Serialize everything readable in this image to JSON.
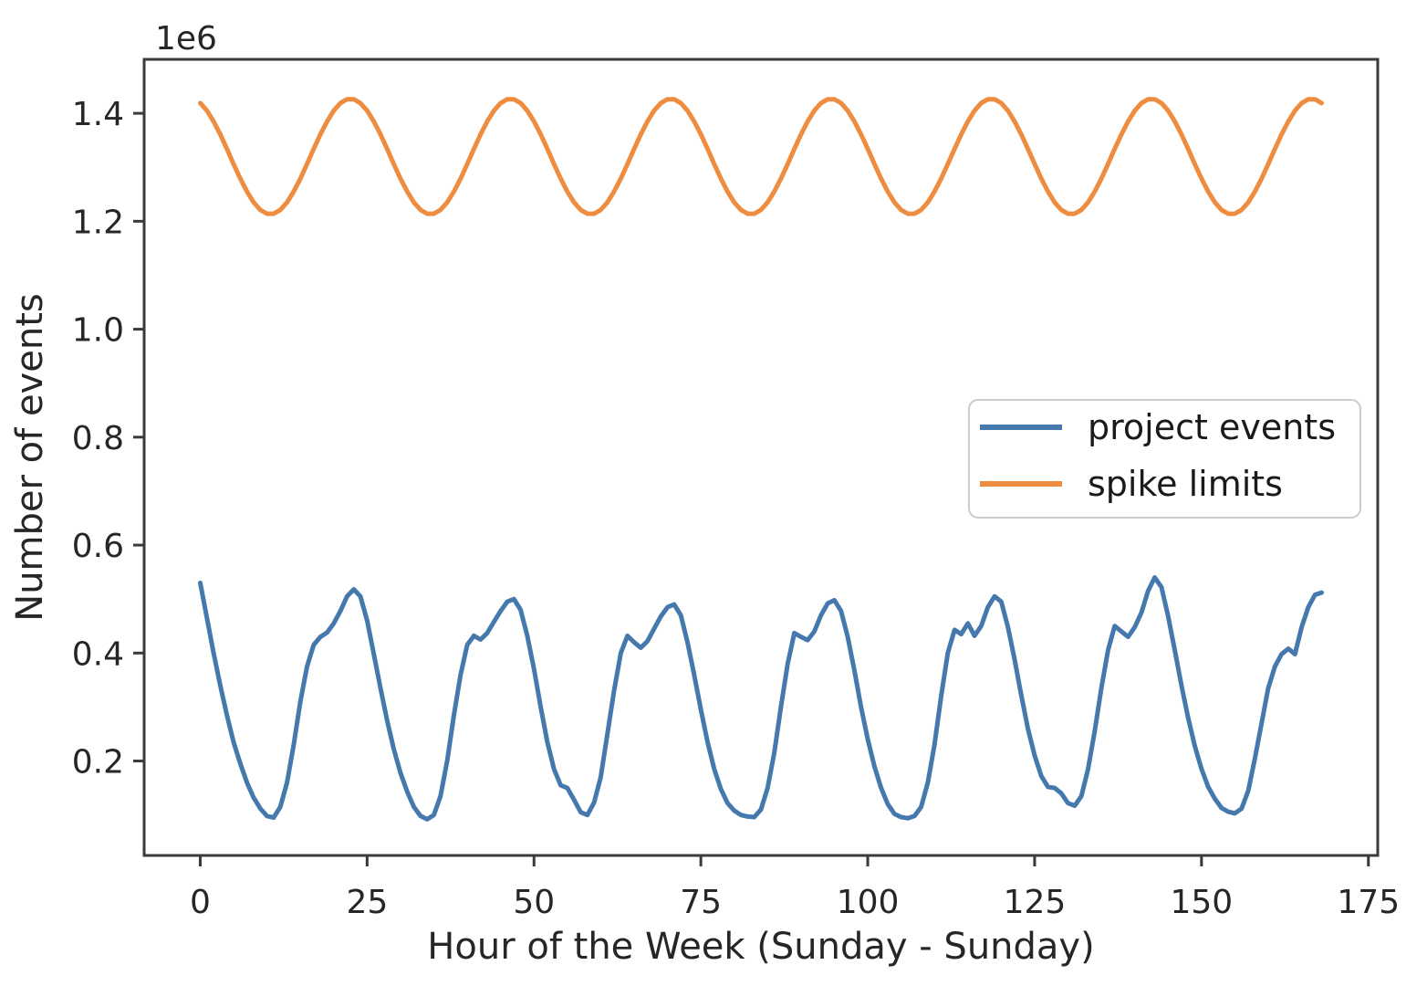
{
  "figure": {
    "background": "#ffffff",
    "spine_color": "#3a3a3a",
    "text_color": "#262626"
  },
  "chart_data": {
    "type": "line",
    "title": "",
    "xlabel": "Hour of the Week (Sunday - Sunday)",
    "ylabel": "Number of events",
    "y_offset_text": "1e6",
    "y_unit_multiplier": 1000000,
    "xlim": [
      -8.4,
      176.4
    ],
    "ylim_millions": [
      0.025,
      1.5
    ],
    "grid": false,
    "legend_position": "center right",
    "x_ticks": [
      0,
      25,
      50,
      75,
      100,
      125,
      150,
      175
    ],
    "x_tick_labels": [
      "0",
      "25",
      "50",
      "75",
      "100",
      "125",
      "150",
      "175"
    ],
    "y_ticks_millions": [
      0.2,
      0.4,
      0.6,
      0.8,
      1.0,
      1.2,
      1.4
    ],
    "y_tick_labels": [
      "0.2",
      "0.4",
      "0.6",
      "0.8",
      "1.0",
      "1.2",
      "1.4"
    ],
    "x": {
      "start": 0,
      "step": 1,
      "count": 169
    },
    "series": [
      {
        "name": "project events",
        "color": "#4579ad",
        "values_millions": [
          0.53,
          0.465,
          0.4,
          0.34,
          0.285,
          0.235,
          0.195,
          0.16,
          0.132,
          0.112,
          0.098,
          0.095,
          0.115,
          0.16,
          0.23,
          0.31,
          0.375,
          0.415,
          0.43,
          0.438,
          0.455,
          0.478,
          0.505,
          0.518,
          0.505,
          0.46,
          0.398,
          0.335,
          0.275,
          0.222,
          0.178,
          0.143,
          0.115,
          0.098,
          0.092,
          0.1,
          0.135,
          0.2,
          0.285,
          0.36,
          0.415,
          0.432,
          0.425,
          0.437,
          0.458,
          0.478,
          0.495,
          0.5,
          0.48,
          0.432,
          0.37,
          0.3,
          0.235,
          0.185,
          0.155,
          0.15,
          0.128,
          0.105,
          0.1,
          0.123,
          0.17,
          0.25,
          0.33,
          0.4,
          0.432,
          0.42,
          0.41,
          0.422,
          0.445,
          0.468,
          0.485,
          0.49,
          0.47,
          0.42,
          0.36,
          0.295,
          0.235,
          0.185,
          0.148,
          0.122,
          0.108,
          0.1,
          0.097,
          0.096,
          0.11,
          0.15,
          0.215,
          0.3,
          0.38,
          0.437,
          0.43,
          0.424,
          0.44,
          0.47,
          0.492,
          0.498,
          0.478,
          0.43,
          0.368,
          0.3,
          0.24,
          0.19,
          0.15,
          0.12,
          0.102,
          0.096,
          0.094,
          0.098,
          0.115,
          0.16,
          0.23,
          0.32,
          0.4,
          0.443,
          0.435,
          0.455,
          0.432,
          0.45,
          0.485,
          0.505,
          0.495,
          0.448,
          0.388,
          0.322,
          0.26,
          0.21,
          0.172,
          0.152,
          0.15,
          0.14,
          0.122,
          0.117,
          0.135,
          0.185,
          0.255,
          0.335,
          0.405,
          0.45,
          0.44,
          0.43,
          0.448,
          0.475,
          0.515,
          0.54,
          0.522,
          0.468,
          0.405,
          0.34,
          0.28,
          0.228,
          0.185,
          0.152,
          0.13,
          0.113,
          0.106,
          0.103,
          0.112,
          0.145,
          0.205,
          0.27,
          0.335,
          0.375,
          0.398,
          0.408,
          0.398,
          0.448,
          0.485,
          0.508,
          0.512
        ]
      },
      {
        "name": "spike limits",
        "color": "#ee8c3f",
        "values_millions": [
          1.419,
          1.405,
          1.385,
          1.361,
          1.334,
          1.306,
          1.279,
          1.255,
          1.235,
          1.221,
          1.214,
          1.214,
          1.221,
          1.235,
          1.255,
          1.279,
          1.306,
          1.334,
          1.361,
          1.385,
          1.405,
          1.419,
          1.426,
          1.426,
          1.419,
          1.405,
          1.385,
          1.361,
          1.334,
          1.306,
          1.279,
          1.255,
          1.235,
          1.221,
          1.214,
          1.214,
          1.221,
          1.235,
          1.255,
          1.279,
          1.306,
          1.334,
          1.361,
          1.385,
          1.405,
          1.419,
          1.426,
          1.426,
          1.419,
          1.405,
          1.385,
          1.361,
          1.334,
          1.306,
          1.279,
          1.255,
          1.235,
          1.221,
          1.214,
          1.214,
          1.221,
          1.235,
          1.255,
          1.279,
          1.306,
          1.334,
          1.361,
          1.385,
          1.405,
          1.419,
          1.426,
          1.426,
          1.419,
          1.405,
          1.385,
          1.361,
          1.334,
          1.306,
          1.279,
          1.255,
          1.235,
          1.221,
          1.214,
          1.214,
          1.221,
          1.235,
          1.255,
          1.279,
          1.306,
          1.334,
          1.361,
          1.385,
          1.405,
          1.419,
          1.426,
          1.426,
          1.419,
          1.405,
          1.385,
          1.361,
          1.334,
          1.306,
          1.279,
          1.255,
          1.235,
          1.221,
          1.214,
          1.214,
          1.221,
          1.235,
          1.255,
          1.279,
          1.306,
          1.334,
          1.361,
          1.385,
          1.405,
          1.419,
          1.426,
          1.426,
          1.419,
          1.405,
          1.385,
          1.361,
          1.334,
          1.306,
          1.279,
          1.255,
          1.235,
          1.221,
          1.214,
          1.214,
          1.221,
          1.235,
          1.255,
          1.279,
          1.306,
          1.334,
          1.361,
          1.385,
          1.405,
          1.419,
          1.426,
          1.426,
          1.419,
          1.405,
          1.385,
          1.361,
          1.334,
          1.306,
          1.279,
          1.255,
          1.235,
          1.221,
          1.214,
          1.214,
          1.221,
          1.235,
          1.255,
          1.279,
          1.306,
          1.334,
          1.361,
          1.385,
          1.405,
          1.419,
          1.426,
          1.426,
          1.419
        ]
      }
    ]
  },
  "legend": {
    "border_color": "#cccccc",
    "fill_color": "#ffffff",
    "items": [
      {
        "label": "project events",
        "color": "#4579ad"
      },
      {
        "label": "spike limits",
        "color": "#ee8c3f"
      }
    ]
  }
}
